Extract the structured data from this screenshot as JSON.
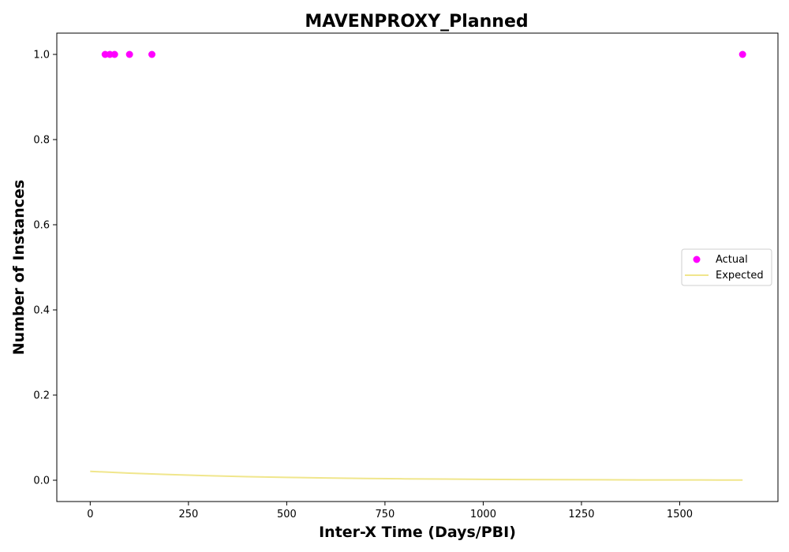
{
  "chart_data": {
    "type": "scatter",
    "title": "MAVENPROXY_Planned",
    "xlabel": "Inter-X Time (Days/PBI)",
    "ylabel": "Number of Instances",
    "xlim": [
      -85,
      1750
    ],
    "ylim": [
      -0.05,
      1.05
    ],
    "x_ticks": [
      0,
      250,
      500,
      750,
      1000,
      1250,
      1500
    ],
    "x_tick_labels": [
      "0",
      "250",
      "500",
      "750",
      "1000",
      "1250",
      "1500"
    ],
    "y_ticks": [
      0.0,
      0.2,
      0.4,
      0.6,
      0.8,
      1.0
    ],
    "y_tick_labels": [
      "0.0",
      "0.2",
      "0.4",
      "0.6",
      "0.8",
      "1.0"
    ],
    "grid": false,
    "legend_position": "center-right",
    "series": [
      {
        "name": "Actual",
        "kind": "scatter",
        "color": "#ff00ff",
        "x": [
          38,
          50,
          62,
          100,
          157,
          1660
        ],
        "y": [
          1.0,
          1.0,
          1.0,
          1.0,
          1.0,
          1.0
        ]
      },
      {
        "name": "Expected",
        "kind": "line",
        "color": "#f0e68c",
        "x": [
          0,
          100,
          200,
          300,
          400,
          500,
          600,
          700,
          800,
          900,
          1000,
          1100,
          1200,
          1300,
          1400,
          1500,
          1600,
          1660
        ],
        "y": [
          0.021,
          0.0167,
          0.0133,
          0.0106,
          0.0084,
          0.0067,
          0.0053,
          0.0042,
          0.0034,
          0.0027,
          0.0021,
          0.0017,
          0.0013,
          0.0011,
          0.0008,
          0.0007,
          0.0005,
          0.0005
        ]
      }
    ]
  }
}
